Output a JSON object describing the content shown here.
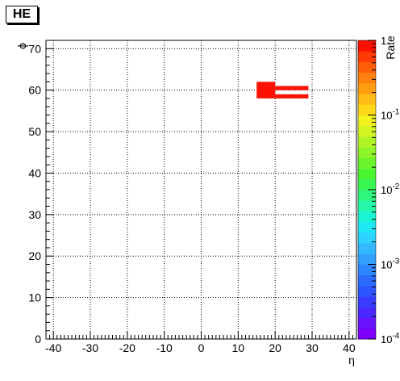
{
  "chart_data": {
    "type": "heatmap",
    "title": "HE",
    "xlabel": "η",
    "ylabel": "ϕ",
    "zlabel": "Rate",
    "xlim": [
      -42,
      42
    ],
    "ylim": [
      0,
      72
    ],
    "z_scale": "log",
    "zlim": [
      0.0001,
      1
    ],
    "grid": true,
    "x_ticks": [
      -40,
      -30,
      -20,
      -10,
      0,
      10,
      20,
      30,
      40
    ],
    "x_tick_labels": [
      "-40",
      "-30",
      "-20",
      "-10",
      "0",
      "10",
      "20",
      "30",
      "40"
    ],
    "y_ticks": [
      0,
      10,
      20,
      30,
      40,
      50,
      60,
      70
    ],
    "y_tick_labels": [
      "0",
      "10",
      "20",
      "30",
      "40",
      "50",
      "60",
      "70"
    ],
    "z_ticks": [
      0.0001,
      0.001,
      0.01,
      0.1,
      1
    ],
    "z_tick_labels": [
      {
        "base": "10",
        "exp": "-4"
      },
      {
        "base": "10",
        "exp": "-3"
      },
      {
        "base": "10",
        "exp": "-2"
      },
      {
        "base": "10",
        "exp": "-1"
      },
      {
        "base": "1",
        "exp": ""
      }
    ],
    "cells": [
      {
        "x0": 15,
        "x1": 20,
        "y0": 58,
        "y1": 62,
        "value": 1
      },
      {
        "x0": 20,
        "x1": 29,
        "y0": 60,
        "y1": 61,
        "value": 1
      },
      {
        "x0": 20,
        "x1": 29,
        "y0": 58,
        "y1": 59,
        "value": 1
      }
    ],
    "palette": [
      "#7f00ff",
      "#6a13ff",
      "#4b28ff",
      "#3a3cff",
      "#2d55ff",
      "#2b6cff",
      "#2e87ff",
      "#32a0ff",
      "#33b8ff",
      "#2dd2ff",
      "#1fe8f5",
      "#19f5d2",
      "#25f7a8",
      "#2ff57c",
      "#38f552",
      "#48f52e",
      "#69f52a",
      "#8ff528",
      "#b2f525",
      "#d2f522",
      "#f2f21e",
      "#ffd919",
      "#ffbc14",
      "#ff9e10",
      "#ff800c",
      "#ff5f08",
      "#ff3a04",
      "#ff1000"
    ]
  }
}
